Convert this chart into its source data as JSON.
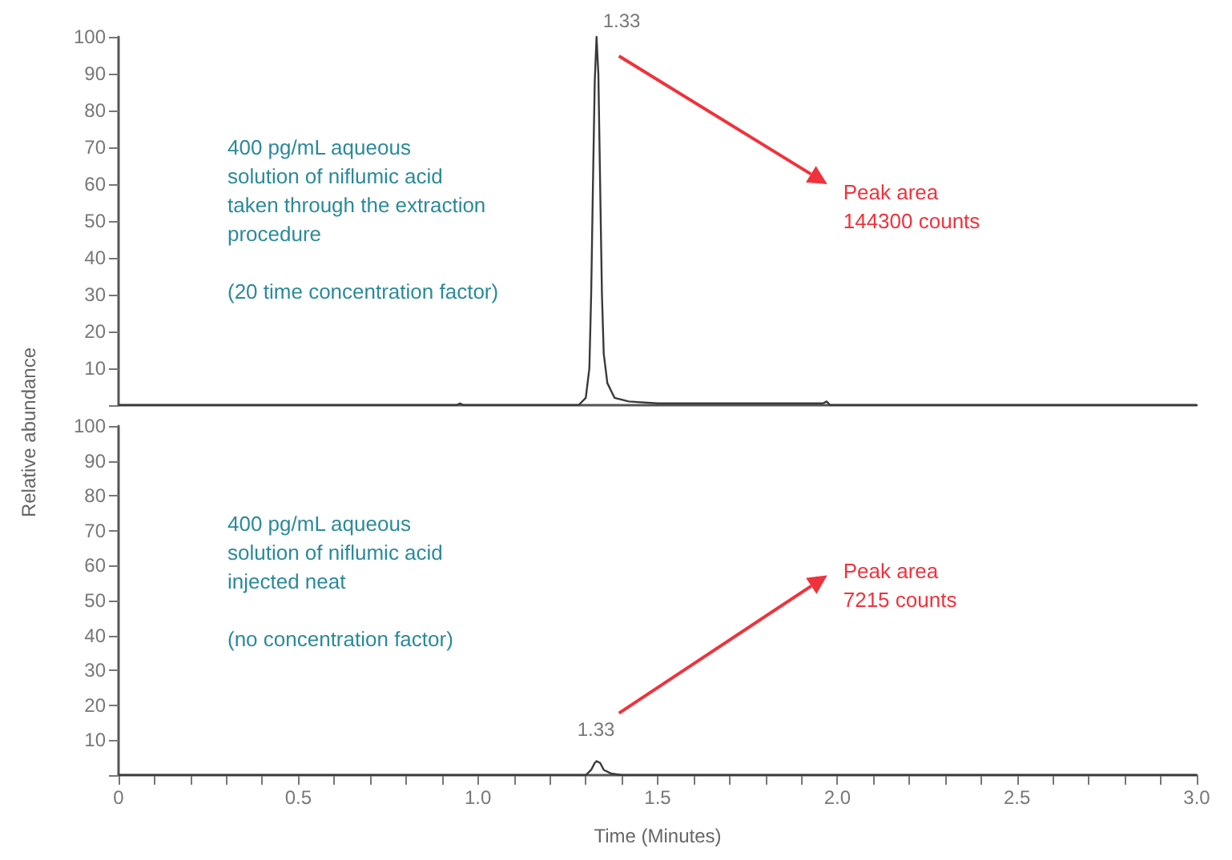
{
  "chart_data": [
    {
      "type": "line",
      "ylabel": "Relative abundance",
      "xlim": [
        0,
        3
      ],
      "ylim": [
        0,
        100
      ],
      "yticks": [
        {
          "value": 0,
          "label": null
        },
        10,
        20,
        30,
        40,
        50,
        60,
        70,
        80,
        90,
        100
      ],
      "tick_labels": "y",
      "series": [
        {
          "color": "#3a3a3a",
          "x": [
            0,
            0.94,
            0.95,
            0.96,
            1.28,
            1.3,
            1.31,
            1.315,
            1.32,
            1.325,
            1.33,
            1.335,
            1.34,
            1.345,
            1.35,
            1.36,
            1.38,
            1.42,
            1.5,
            1.96,
            1.97,
            1.98,
            3
          ],
          "values": [
            0,
            0,
            0.5,
            0,
            0,
            2,
            10,
            30,
            60,
            88,
            100,
            90,
            60,
            30,
            14,
            6,
            2,
            1,
            0.5,
            0.5,
            1,
            0,
            0
          ]
        }
      ],
      "annotations": [
        {
          "text": "1.33",
          "x": 1.33,
          "y": 100
        },
        "Peak area\n144300 counts",
        "400 pg/mL aqueous\nsolution of niflumic acid\ntaken through the extraction\nprocedure\n\n(20 time concentration factor)"
      ]
    },
    {
      "type": "line",
      "xlabel": "Time (Minutes)",
      "xlim": [
        0,
        3
      ],
      "ylim": [
        0,
        100
      ],
      "xticks": [
        0,
        {
          "value": 0.1,
          "label": null
        },
        {
          "value": 0.2,
          "label": null
        },
        {
          "value": 0.3,
          "label": null
        },
        {
          "value": 0.4,
          "label": null
        },
        0.5,
        {
          "value": 0.6,
          "label": null
        },
        {
          "value": 0.7,
          "label": null
        },
        {
          "value": 0.8,
          "label": null
        },
        {
          "value": 0.9,
          "label": null
        },
        {
          "value": 1,
          "label": "1.0"
        },
        {
          "value": 1.1,
          "label": null
        },
        {
          "value": 1.2,
          "label": null
        },
        {
          "value": 1.3,
          "label": null
        },
        {
          "value": 1.4,
          "label": null
        },
        1.5,
        {
          "value": 1.6,
          "label": null
        },
        {
          "value": 1.7,
          "label": null
        },
        {
          "value": 1.8,
          "label": null
        },
        {
          "value": 1.9,
          "label": null
        },
        {
          "value": 2,
          "label": "2.0"
        },
        {
          "value": 2.1,
          "label": null
        },
        {
          "value": 2.2,
          "label": null
        },
        {
          "value": 2.3,
          "label": null
        },
        {
          "value": 2.4,
          "label": null
        },
        2.5,
        {
          "value": 2.6,
          "label": null
        },
        {
          "value": 2.7,
          "label": null
        },
        {
          "value": 2.8,
          "label": null
        },
        {
          "value": 2.9,
          "label": null
        },
        {
          "value": 3,
          "label": "3.0"
        }
      ],
      "yticks": [
        {
          "value": 0,
          "label": null
        },
        10,
        20,
        30,
        40,
        50,
        60,
        70,
        80,
        90,
        100
      ],
      "series": [
        {
          "color": "#3a3a3a",
          "x": [
            0,
            1.3,
            1.315,
            1.325,
            1.33,
            1.34,
            1.35,
            1.37,
            1.4,
            3
          ],
          "values": [
            0,
            0,
            1.5,
            3.5,
            4,
            3.5,
            1.5,
            0.5,
            0,
            0
          ]
        }
      ],
      "annotations": [
        {
          "text": "1.33",
          "x": 1.33,
          "y": 4
        },
        "Peak area\n7215 counts",
        "400 pg/mL aqueous\nsolution of niflumic acid\ninjected neat\n\n(no concentration factor)"
      ]
    }
  ]
}
